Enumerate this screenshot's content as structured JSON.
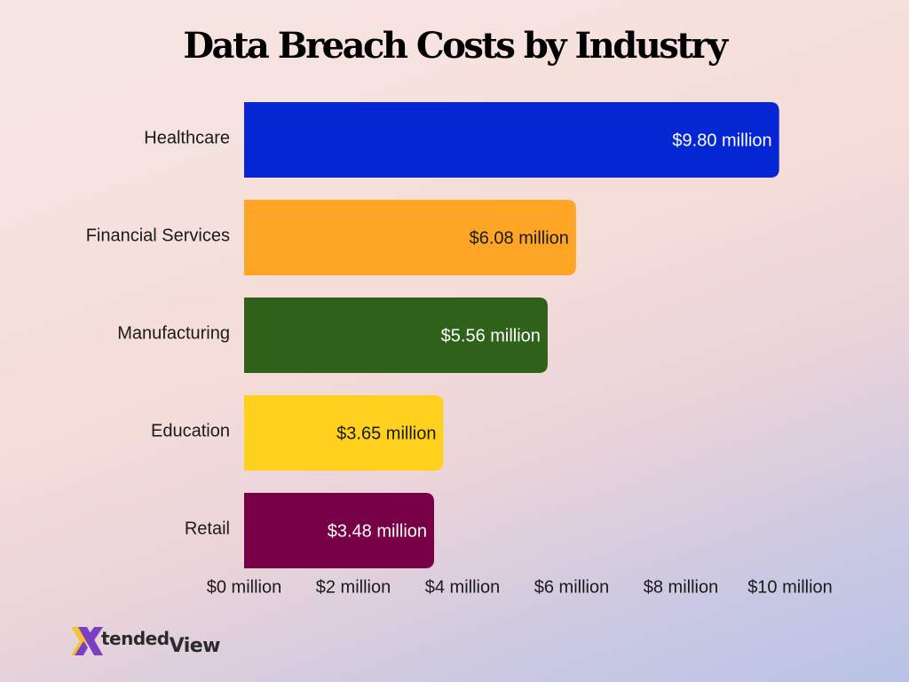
{
  "chart_data": {
    "type": "bar",
    "orientation": "horizontal",
    "title": "Data Breach Costs by Industry",
    "categories": [
      "Healthcare",
      "Financial Services",
      "Manufacturing",
      "Education",
      "Retail"
    ],
    "values": [
      9.8,
      6.08,
      5.56,
      3.65,
      3.48
    ],
    "value_labels": [
      "$9.80 million",
      "$6.08 million",
      "$5.56 million",
      "$3.65 million",
      "$3.48 million"
    ],
    "colors": [
      "#0526d3",
      "#ffa526",
      "#2e621a",
      "#ffd11f",
      "#780047"
    ],
    "label_colors": [
      "#ffffff",
      "#1a1a1a",
      "#ffffff",
      "#1a1a1a",
      "#ffffff"
    ],
    "xlim": [
      0,
      10
    ],
    "x_ticks": [
      0,
      2,
      4,
      6,
      8,
      10
    ],
    "x_tick_labels": [
      "$0 million",
      "$2 million",
      "$4 million",
      "$6 million",
      "$8 million",
      "$10 million"
    ],
    "xlabel": "",
    "ylabel": "",
    "grid": false,
    "legend": "none"
  },
  "brand": {
    "logo_text_tended": "tended",
    "logo_text_view": "View",
    "logo_colors": [
      "#f2c230",
      "#7b3fc4"
    ]
  }
}
